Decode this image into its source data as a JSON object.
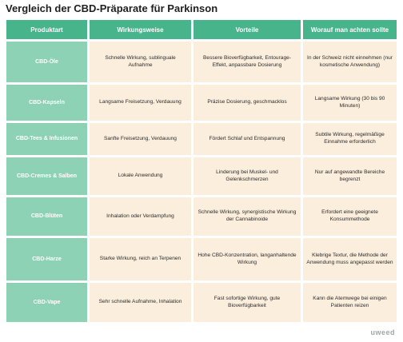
{
  "title": "Vergleich der CBD-Präparate für Parkinson",
  "headers": [
    "Produktart",
    "Wirkungsweise",
    "Vorteile",
    "Worauf man achten sollte"
  ],
  "rows": [
    {
      "product": "CBD-Öle",
      "effect": "Schnelle Wirkung, sublinguale Aufnahme",
      "benefits": "Bessere Bioverfügbarkeit, Entourage-Effekt, anpassbare Dosierung",
      "caution": "In der Schweiz nicht einnehmen (nur kosmetische Anwendung)"
    },
    {
      "product": "CBD-Kapseln",
      "effect": "Langsame Freisetzung, Verdauung",
      "benefits": "Präzise Dosierung, geschmacklos",
      "caution": "Langsame Wirkung (30 bis 90 Minuten)"
    },
    {
      "product": "CBD-Tees & Infusionen",
      "effect": "Sanfte Freisetzung, Verdauung",
      "benefits": "Fördert Schlaf und Entspannung",
      "caution": "Subtile Wirkung, regelmäßige Einnahme erforderlich"
    },
    {
      "product": "CBD-Cremes & Salben",
      "effect": "Lokale Anwendung",
      "benefits": "Linderung bei Muskel- und Gelenkschmerzen",
      "caution": "Nur auf angewandte Bereiche begrenzt"
    },
    {
      "product": "CBD-Blüten",
      "effect": "Inhalation oder Verdampfung",
      "benefits": "Schnelle Wirkung, synergistische Wirkung der Cannabinoide",
      "caution": "Erfordert eine geeignete Konsummethode"
    },
    {
      "product": "CBD-Harze",
      "effect": "Starke Wirkung, reich an Terpenen",
      "benefits": "Hohe CBD-Konzentration, langanhaltende Wirkung",
      "caution": "Klebrige Textur, die Methode der Anwendung muss angepasst werden"
    },
    {
      "product": "CBD-Vape",
      "effect": "Sehr schnelle Aufnahme, Inhalation",
      "benefits": "Fast sofortige Wirkung, gute Bioverfügbarkeit",
      "caution": "Kann die Atemwege bei einigen Patienten reizen"
    }
  ],
  "brand": "uweed",
  "colors": {
    "header": "#48b48c",
    "product_cell": "#8dd2b4",
    "body_cell": "#fbeedd"
  }
}
